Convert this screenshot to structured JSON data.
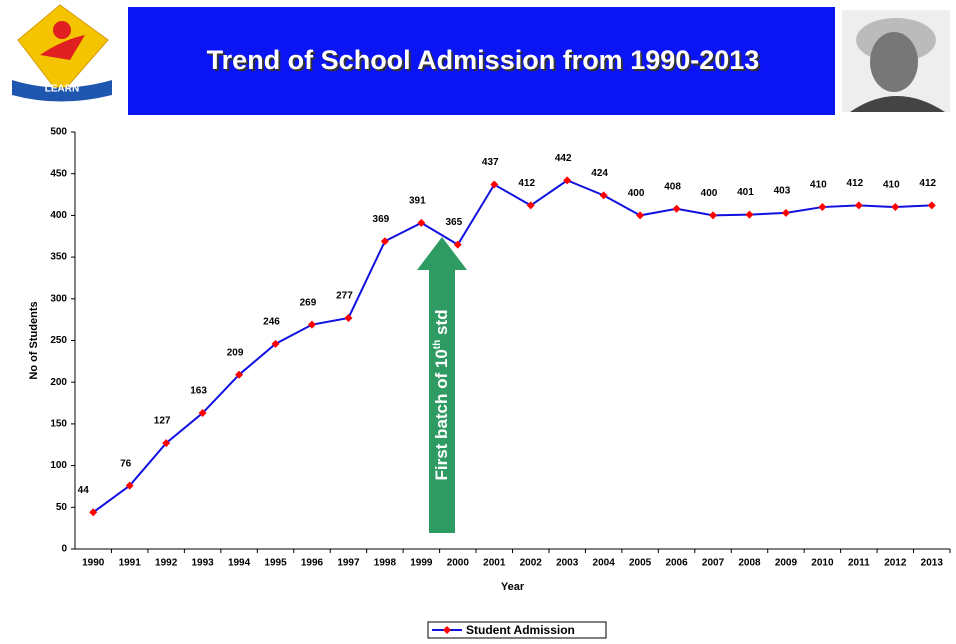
{
  "header": {
    "title": "Trend of School  Admission from 1990-2013",
    "logo_text": "LEARN"
  },
  "chart_data": {
    "type": "line",
    "y_label": "No of Students",
    "x_label": "Year",
    "categories": [
      "1990",
      "1991",
      "1992",
      "1993",
      "1994",
      "1995",
      "1996",
      "1997",
      "1998",
      "1999",
      "2000",
      "2001",
      "2002",
      "2003",
      "2004",
      "2005",
      "2006",
      "2007",
      "2008",
      "2009",
      "2010",
      "2011",
      "2012",
      "2013"
    ],
    "series": [
      {
        "name": "Student Admission",
        "color": "#1010e0",
        "marker_color": "#ff0000",
        "values": [
          44,
          76,
          127,
          163,
          209,
          246,
          269,
          277,
          369,
          391,
          365,
          437,
          412,
          442,
          424,
          400,
          408,
          400,
          401,
          403,
          410,
          412,
          410,
          412
        ]
      }
    ],
    "ylim": [
      0,
      500
    ],
    "yticks": [
      0,
      50,
      100,
      150,
      200,
      250,
      300,
      350,
      400,
      450,
      500
    ],
    "grid": false,
    "annotation": [
      "First batch of 10",
      "th",
      " std"
    ],
    "legend": "bottom"
  }
}
